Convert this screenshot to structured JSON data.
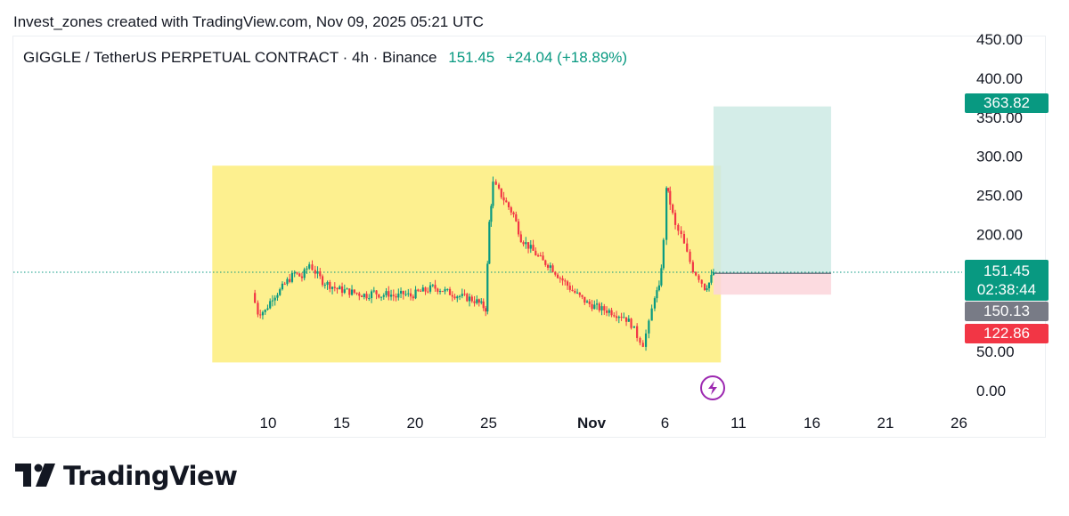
{
  "header": {
    "credit": "Invest_zones created with TradingView.com, Nov 09, 2025 05:21 UTC"
  },
  "legend": {
    "symbol": "GIGGLE / TetherUS PERPETUAL CONTRACT · 4h · Binance",
    "price": "151.45",
    "change": "+24.04 (+18.89%)"
  },
  "price_tags": {
    "target": "363.82",
    "current": "151.45",
    "countdown": "02:38:44",
    "entry": "150.13",
    "stop": "122.86"
  },
  "colors": {
    "up": "#089981",
    "down": "#f23645",
    "range_box": "#fdef86",
    "profit_zone": "#cdeae4",
    "loss_zone": "#fbd5da",
    "entry_tag": "#787b86",
    "event_icon": "#9c27b0"
  },
  "brand": "TradingView",
  "chart_data": {
    "type": "candlestick",
    "title": "GIGGLE / TetherUS PERPETUAL CONTRACT · 4h · Binance",
    "y_ticks": [
      "0.00",
      "50.00",
      "100.00",
      "150.00",
      "200.00",
      "250.00",
      "300.00",
      "350.00",
      "400.00",
      "450.00"
    ],
    "ylim": [
      0,
      450
    ],
    "x_ticks": [
      {
        "label": "10",
        "day": 10
      },
      {
        "label": "15",
        "day": 15
      },
      {
        "label": "20",
        "day": 20
      },
      {
        "label": "25",
        "day": 25
      },
      {
        "label": "Nov",
        "day": 32
      },
      {
        "label": "6",
        "day": 37
      },
      {
        "label": "11",
        "day": 42
      },
      {
        "label": "16",
        "day": 47
      },
      {
        "label": "21",
        "day": 52
      },
      {
        "label": "26",
        "day": 57
      }
    ],
    "x_axis_note": "days counted from Oct 1 (Nov 1 = day 32)",
    "close_path": [
      [
        8.9,
        125
      ],
      [
        9.3,
        100
      ],
      [
        9.8,
        102
      ],
      [
        10.3,
        120
      ],
      [
        10.8,
        128
      ],
      [
        11.3,
        140
      ],
      [
        11.8,
        150
      ],
      [
        12.3,
        145
      ],
      [
        12.8,
        162
      ],
      [
        13.2,
        152
      ],
      [
        13.7,
        140
      ],
      [
        14.2,
        135
      ],
      [
        14.7,
        130
      ],
      [
        15.2,
        128
      ],
      [
        15.7,
        126
      ],
      [
        16.2,
        124
      ],
      [
        16.7,
        122
      ],
      [
        17.2,
        126
      ],
      [
        17.7,
        122
      ],
      [
        18.2,
        124
      ],
      [
        18.7,
        120
      ],
      [
        19.2,
        124
      ],
      [
        19.7,
        121
      ],
      [
        20.2,
        126
      ],
      [
        20.7,
        128
      ],
      [
        21.2,
        132
      ],
      [
        21.7,
        130
      ],
      [
        22.2,
        126
      ],
      [
        22.7,
        123
      ],
      [
        23.2,
        120
      ],
      [
        23.7,
        118
      ],
      [
        24.2,
        114
      ],
      [
        24.8,
        105
      ],
      [
        25.05,
        215
      ],
      [
        25.3,
        265
      ],
      [
        25.7,
        255
      ],
      [
        26.2,
        240
      ],
      [
        26.7,
        225
      ],
      [
        27.2,
        195
      ],
      [
        27.7,
        185
      ],
      [
        28.2,
        175
      ],
      [
        28.7,
        165
      ],
      [
        29.2,
        160
      ],
      [
        29.7,
        148
      ],
      [
        30.2,
        138
      ],
      [
        30.7,
        128
      ],
      [
        31.2,
        120
      ],
      [
        31.7,
        112
      ],
      [
        32.2,
        108
      ],
      [
        32.7,
        104
      ],
      [
        33.2,
        102
      ],
      [
        33.7,
        98
      ],
      [
        34.2,
        95
      ],
      [
        34.7,
        85
      ],
      [
        35.1,
        70
      ],
      [
        35.5,
        60
      ],
      [
        35.9,
        85
      ],
      [
        36.3,
        122
      ],
      [
        36.6,
        130
      ],
      [
        36.9,
        190
      ],
      [
        37.1,
        262
      ],
      [
        37.35,
        240
      ],
      [
        37.7,
        210
      ],
      [
        38.1,
        198
      ],
      [
        38.5,
        175
      ],
      [
        38.9,
        155
      ],
      [
        39.3,
        145
      ],
      [
        39.7,
        132
      ],
      [
        40.0,
        138
      ],
      [
        40.3,
        151.45
      ]
    ],
    "annotations": {
      "range_box": {
        "x": [
          6.2,
          40.8
        ],
        "y": [
          36,
          288
        ]
      },
      "long_position": {
        "x": [
          40.3,
          48.3
        ],
        "entry": 150.13,
        "target": 363.82,
        "stop": 122.86
      },
      "last_price_line": 151.45
    }
  }
}
